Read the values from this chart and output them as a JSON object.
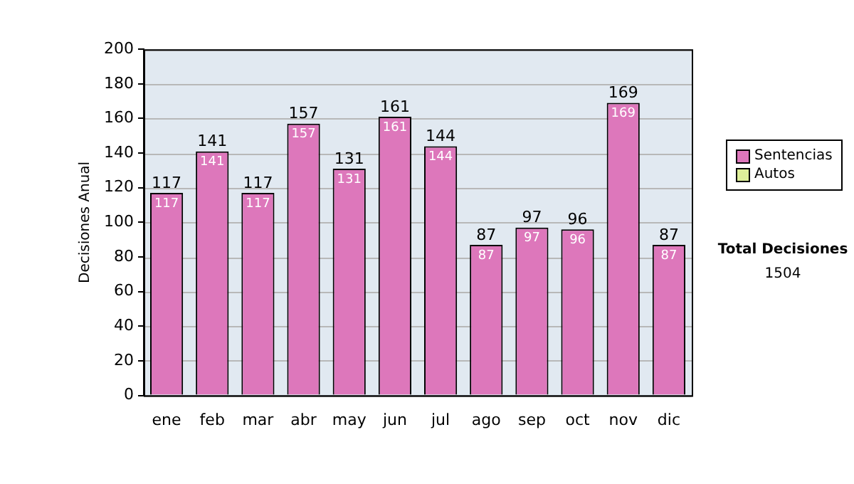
{
  "chart_data": {
    "type": "bar",
    "stacked": true,
    "ylabel": "Decisiones Anual",
    "categories": [
      "ene",
      "feb",
      "mar",
      "abr",
      "may",
      "jun",
      "jul",
      "ago",
      "sep",
      "oct",
      "nov",
      "dic"
    ],
    "series": [
      {
        "name": "Sentencias",
        "color": "#dd77bb",
        "values": [
          117,
          141,
          117,
          157,
          131,
          161,
          144,
          87,
          97,
          96,
          169,
          87
        ],
        "value_labels": [
          "117",
          "141",
          "117",
          "157",
          "131",
          "161",
          "144",
          "87",
          "97",
          "96",
          "169",
          "87"
        ]
      },
      {
        "name": "Autos",
        "color": "#ddee99",
        "values": [
          0,
          0,
          0,
          0,
          0,
          0,
          0,
          0,
          0,
          0,
          0,
          0
        ]
      }
    ],
    "totals": [
      "117",
      "141",
      "117",
      "157",
      "131",
      "161",
      "144",
      "87",
      "97",
      "96",
      "169",
      "87"
    ],
    "ylim": [
      0,
      200
    ],
    "yticks": [
      0,
      20,
      40,
      60,
      80,
      100,
      120,
      140,
      160,
      180,
      200
    ],
    "grid": "y",
    "legend": "right",
    "annotations": [
      "Total Decisiones",
      "1504"
    ]
  }
}
